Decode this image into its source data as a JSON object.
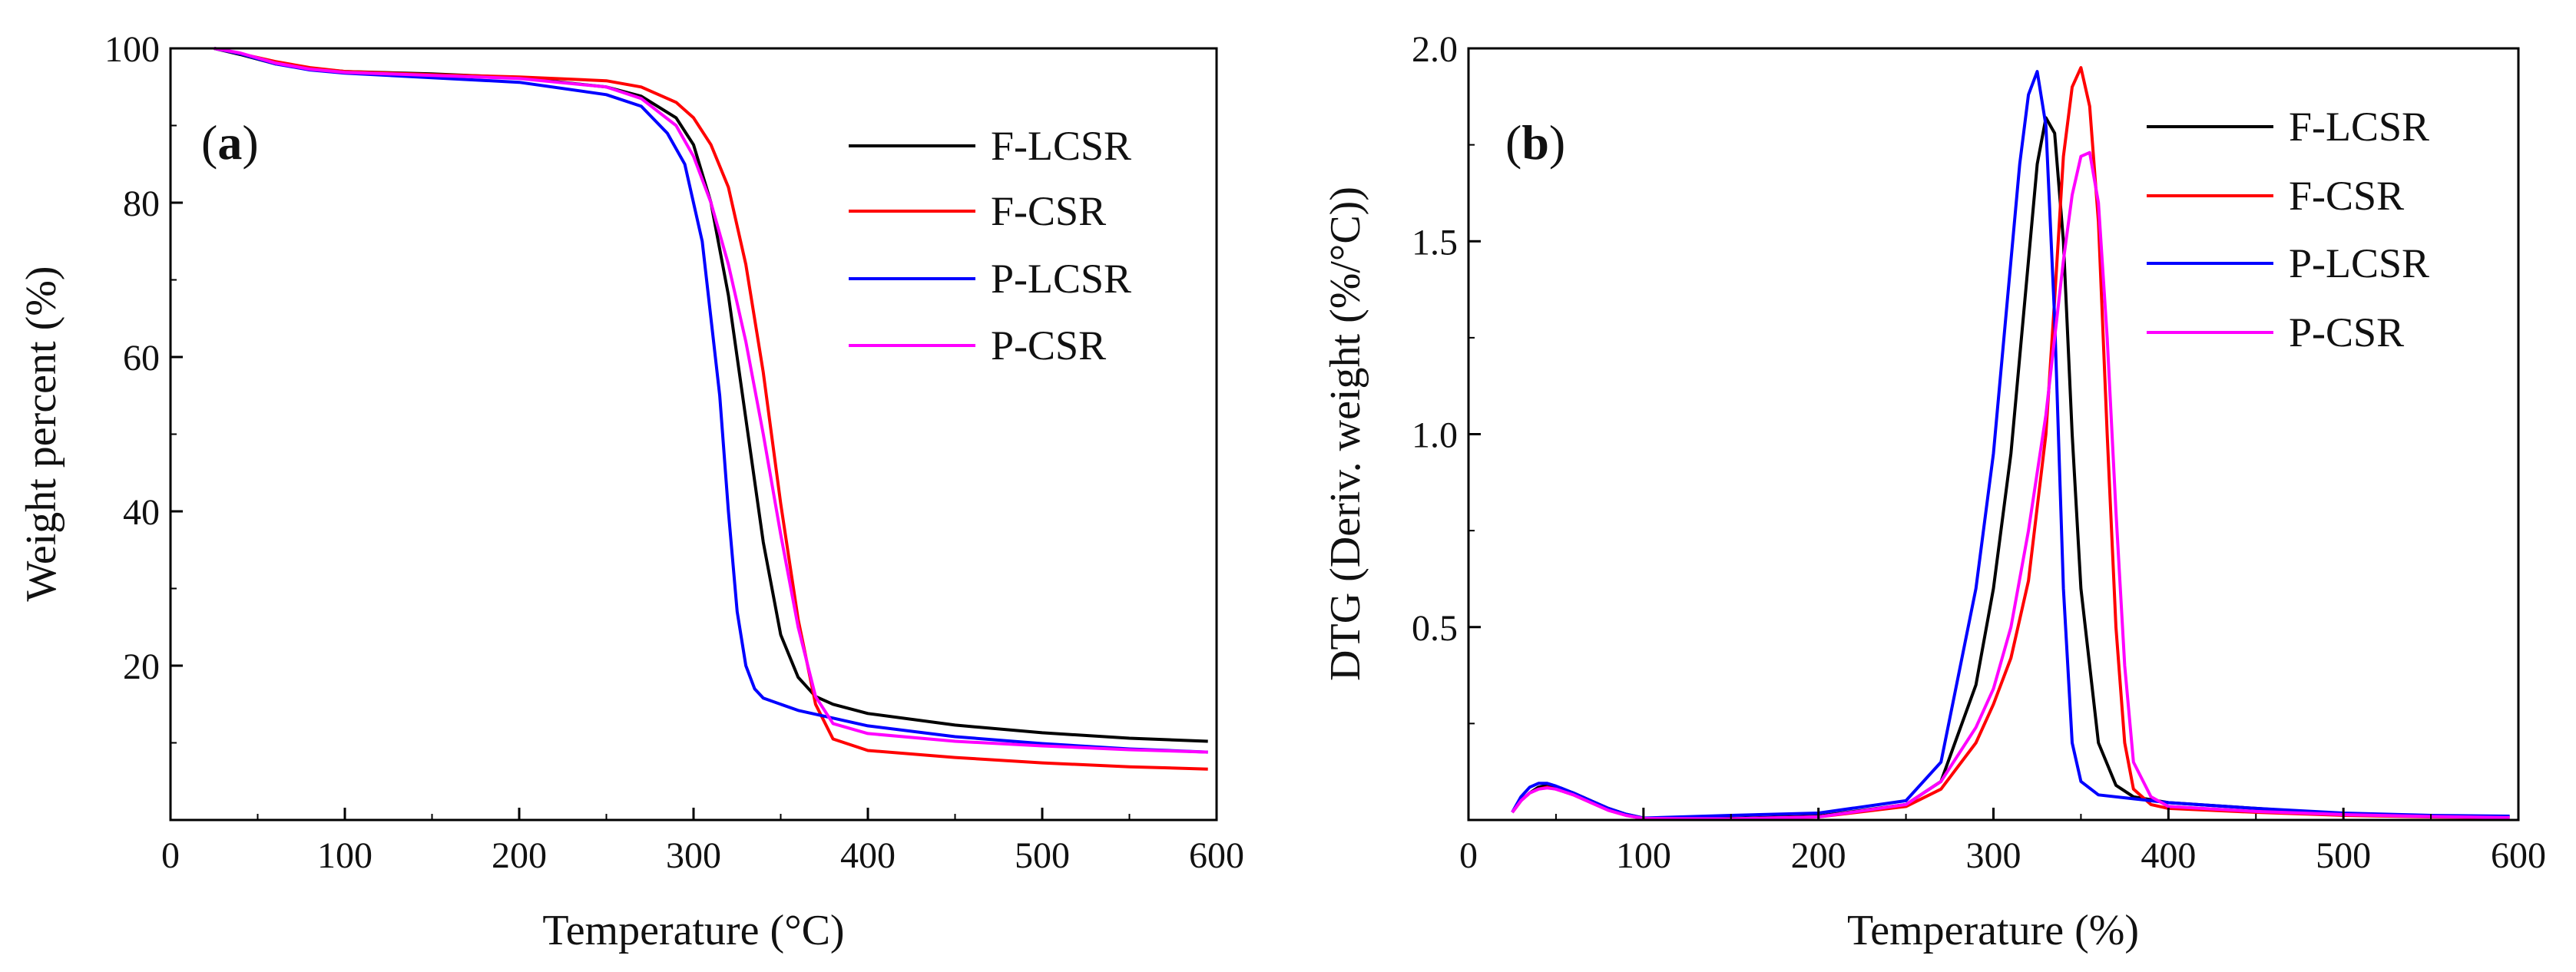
{
  "chart_data": [
    {
      "type": "line",
      "panel_label_open": "(",
      "panel_label_letter": "a",
      "panel_label_close": ")",
      "xlabel": "Temperature (°C)",
      "ylabel": "Weight percent (%)",
      "xlim": [
        0,
        600
      ],
      "ylim": [
        0,
        100
      ],
      "xticks": [
        0,
        100,
        200,
        300,
        400,
        500,
        600
      ],
      "yticks": [
        20,
        40,
        60,
        80,
        100
      ],
      "legend_position": "top-right",
      "series": [
        {
          "name": "F-LCSR",
          "color": "#000000",
          "x": [
            25,
            40,
            60,
            80,
            100,
            150,
            200,
            250,
            270,
            290,
            300,
            310,
            320,
            330,
            340,
            350,
            360,
            370,
            380,
            400,
            450,
            500,
            550,
            595
          ],
          "y": [
            100,
            99.2,
            98,
            97.4,
            97,
            96.7,
            96.2,
            95,
            93.8,
            91,
            87.5,
            80,
            68,
            52,
            36,
            24,
            18.5,
            16,
            15,
            13.8,
            12.3,
            11.3,
            10.6,
            10.2
          ]
        },
        {
          "name": "F-CSR",
          "color": "#ff0000",
          "x": [
            25,
            40,
            60,
            80,
            100,
            150,
            200,
            250,
            270,
            290,
            300,
            310,
            320,
            330,
            340,
            350,
            360,
            370,
            380,
            400,
            450,
            500,
            550,
            595
          ],
          "y": [
            100,
            99.3,
            98.3,
            97.5,
            97,
            96.6,
            96.3,
            95.8,
            95,
            93,
            91,
            87.5,
            82,
            72,
            58,
            41,
            26,
            15,
            10.5,
            9,
            8.1,
            7.4,
            6.9,
            6.6
          ]
        },
        {
          "name": "P-LCSR",
          "color": "#0000ff",
          "x": [
            25,
            40,
            60,
            80,
            100,
            150,
            200,
            250,
            270,
            285,
            295,
            305,
            315,
            320,
            325,
            330,
            335,
            340,
            350,
            360,
            380,
            400,
            450,
            500,
            550,
            595
          ],
          "y": [
            100,
            99.3,
            98,
            97.2,
            96.8,
            96.2,
            95.6,
            94,
            92.5,
            89,
            85,
            75,
            55,
            40,
            27,
            20,
            17,
            15.8,
            15,
            14.2,
            13.2,
            12.2,
            10.8,
            9.9,
            9.2,
            8.8
          ]
        },
        {
          "name": "P-CSR",
          "color": "#ff00ff",
          "x": [
            25,
            40,
            60,
            80,
            100,
            150,
            200,
            250,
            270,
            290,
            300,
            310,
            320,
            330,
            340,
            350,
            360,
            370,
            380,
            400,
            450,
            500,
            550,
            595
          ],
          "y": [
            100,
            99.4,
            98.1,
            97.3,
            96.9,
            96.5,
            96.1,
            95,
            93.5,
            90,
            86,
            80,
            72,
            62,
            50,
            37,
            25,
            16,
            12.5,
            11.2,
            10.2,
            9.6,
            9.1,
            8.8
          ]
        }
      ]
    },
    {
      "type": "line",
      "panel_label_open": "(",
      "panel_label_letter": "b",
      "panel_label_close": ")",
      "xlabel": "Temperature (%)",
      "ylabel": "DTG (Deriv. weight (%/°C))",
      "xlim": [
        0,
        600
      ],
      "ylim": [
        0,
        2.0
      ],
      "xticks": [
        0,
        100,
        200,
        300,
        400,
        500,
        600
      ],
      "yticks": [
        0.5,
        1.0,
        1.5,
        2.0
      ],
      "ytick_labels": [
        "0.5",
        "1.0",
        "1.5",
        "2.0"
      ],
      "legend_position": "top-right",
      "series": [
        {
          "name": "F-LCSR",
          "color": "#000000",
          "x": [
            25,
            30,
            35,
            40,
            45,
            50,
            60,
            70,
            80,
            90,
            100,
            150,
            200,
            250,
            270,
            290,
            300,
            310,
            320,
            325,
            330,
            335,
            340,
            345,
            350,
            360,
            370,
            380,
            400,
            450,
            500,
            550,
            595
          ],
          "y": [
            0.02,
            0.05,
            0.07,
            0.085,
            0.09,
            0.085,
            0.07,
            0.05,
            0.03,
            0.015,
            0.005,
            0.004,
            0.01,
            0.04,
            0.1,
            0.35,
            0.6,
            0.95,
            1.45,
            1.7,
            1.82,
            1.78,
            1.5,
            1.0,
            0.6,
            0.2,
            0.09,
            0.06,
            0.045,
            0.03,
            0.015,
            0.01,
            0.008
          ]
        },
        {
          "name": "F-CSR",
          "color": "#ff0000",
          "x": [
            25,
            30,
            35,
            40,
            45,
            50,
            60,
            70,
            80,
            90,
            100,
            150,
            200,
            250,
            270,
            290,
            300,
            310,
            320,
            330,
            335,
            340,
            345,
            350,
            355,
            360,
            365,
            370,
            375,
            380,
            390,
            400,
            450,
            500,
            550,
            595
          ],
          "y": [
            0.02,
            0.05,
            0.07,
            0.08,
            0.085,
            0.08,
            0.065,
            0.045,
            0.025,
            0.012,
            0.004,
            0.003,
            0.008,
            0.035,
            0.08,
            0.2,
            0.3,
            0.42,
            0.62,
            1.0,
            1.35,
            1.72,
            1.9,
            1.95,
            1.85,
            1.55,
            1.0,
            0.5,
            0.2,
            0.08,
            0.04,
            0.03,
            0.02,
            0.012,
            0.008,
            0.006
          ]
        },
        {
          "name": "P-LCSR",
          "color": "#0000ff",
          "x": [
            25,
            30,
            35,
            40,
            45,
            50,
            60,
            70,
            80,
            90,
            100,
            150,
            200,
            250,
            270,
            290,
            300,
            310,
            315,
            320,
            325,
            330,
            335,
            340,
            345,
            350,
            360,
            380,
            400,
            450,
            500,
            550,
            595
          ],
          "y": [
            0.02,
            0.06,
            0.085,
            0.095,
            0.095,
            0.088,
            0.07,
            0.05,
            0.03,
            0.015,
            0.005,
            0.012,
            0.018,
            0.05,
            0.15,
            0.6,
            0.95,
            1.45,
            1.7,
            1.88,
            1.94,
            1.8,
            1.3,
            0.6,
            0.2,
            0.1,
            0.065,
            0.055,
            0.045,
            0.03,
            0.018,
            0.012,
            0.01
          ]
        },
        {
          "name": "P-CSR",
          "color": "#ff00ff",
          "x": [
            25,
            30,
            35,
            40,
            45,
            50,
            60,
            70,
            80,
            90,
            100,
            150,
            200,
            250,
            270,
            290,
            300,
            310,
            320,
            330,
            340,
            345,
            350,
            355,
            360,
            365,
            370,
            375,
            380,
            390,
            400,
            450,
            500,
            550,
            595
          ],
          "y": [
            0.02,
            0.05,
            0.07,
            0.08,
            0.083,
            0.08,
            0.065,
            0.045,
            0.025,
            0.012,
            0.004,
            0.003,
            0.008,
            0.04,
            0.1,
            0.24,
            0.34,
            0.5,
            0.75,
            1.05,
            1.45,
            1.62,
            1.72,
            1.73,
            1.6,
            1.25,
            0.8,
            0.4,
            0.15,
            0.06,
            0.035,
            0.022,
            0.014,
            0.009,
            0.006
          ]
        }
      ]
    }
  ]
}
